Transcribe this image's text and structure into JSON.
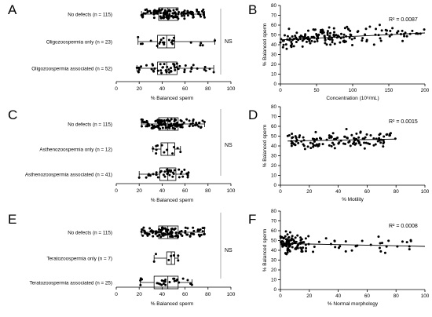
{
  "colors": {
    "axis": "#000000",
    "ns_line": "#999999",
    "point": "#000000",
    "fit": "#000000",
    "background": "#ffffff"
  },
  "chart_data": [
    {
      "panel": "A",
      "type": "box",
      "xlabel": "% Balanced sperm",
      "xlim": [
        0,
        100
      ],
      "xticks": [
        0,
        20,
        40,
        60,
        80,
        100
      ],
      "annotation": "NS",
      "categories": [
        {
          "label": "No defects (n = 115)",
          "whisker": [
            22,
            77
          ],
          "box": [
            37,
            54
          ],
          "median": 45,
          "n": 115
        },
        {
          "label": "Oligozoospermia only (n = 23)",
          "whisker": [
            19,
            86
          ],
          "box": [
            36,
            51
          ],
          "median": 44,
          "n": 23
        },
        {
          "label": "Oligozoospermia associated (n = 52)",
          "whisker": [
            18,
            85
          ],
          "box": [
            36,
            53
          ],
          "median": 44,
          "n": 52
        }
      ]
    },
    {
      "panel": "B",
      "type": "scatter",
      "xlabel": "Concentration (10⁶/mL)",
      "ylabel": "% Balanced sperm",
      "xlim": [
        0,
        200
      ],
      "ylim": [
        0,
        80
      ],
      "xticks": [
        0,
        50,
        100,
        150,
        200
      ],
      "yticks": [
        0,
        10,
        20,
        30,
        40,
        50,
        60,
        70,
        80
      ],
      "r2": "R² = 0.0087",
      "fit": [
        [
          0,
          45
        ],
        [
          200,
          52
        ]
      ]
    },
    {
      "panel": "C",
      "type": "box",
      "xlabel": "% Balanced sperm",
      "xlim": [
        0,
        100
      ],
      "xticks": [
        0,
        20,
        40,
        60,
        80,
        100
      ],
      "annotation": "NS",
      "categories": [
        {
          "label": "No defects (n = 115)",
          "whisker": [
            22,
            77
          ],
          "box": [
            37,
            54
          ],
          "median": 45,
          "n": 115
        },
        {
          "label": "Asthenozoospermia only (n = 12)",
          "whisker": [
            32,
            56
          ],
          "box": [
            39,
            51
          ],
          "median": 45,
          "n": 12
        },
        {
          "label": "Asthenozoospermia associated (n = 41)",
          "whisker": [
            20,
            63
          ],
          "box": [
            38,
            52
          ],
          "median": 45,
          "n": 41
        }
      ]
    },
    {
      "panel": "D",
      "type": "scatter",
      "xlabel": "% Motility",
      "ylabel": "% Balanced sperm",
      "xlim": [
        0,
        100
      ],
      "ylim": [
        0,
        80
      ],
      "xticks": [
        0,
        20,
        40,
        60,
        80,
        100
      ],
      "yticks": [
        0,
        10,
        20,
        30,
        40,
        50,
        60,
        70,
        80
      ],
      "r2": "R² = 0.0015",
      "fit": [
        [
          5,
          45
        ],
        [
          80,
          47
        ]
      ]
    },
    {
      "panel": "E",
      "type": "box",
      "xlabel": "% Balanced sperm",
      "xlim": [
        0,
        100
      ],
      "xticks": [
        0,
        20,
        40,
        60,
        80,
        100
      ],
      "annotation": "NS",
      "categories": [
        {
          "label": "No defects (n = 115)",
          "whisker": [
            22,
            77
          ],
          "box": [
            37,
            54
          ],
          "median": 45,
          "n": 115
        },
        {
          "label": "Teratozoospermia only (n = 7)",
          "whisker": [
            33,
            54
          ],
          "box": [
            44,
            51
          ],
          "median": 48,
          "n": 7
        },
        {
          "label": "Teratozoospermia associated (n = 25)",
          "whisker": [
            21,
            66
          ],
          "box": [
            33,
            54
          ],
          "median": 45,
          "n": 25
        }
      ]
    },
    {
      "panel": "F",
      "type": "scatter",
      "xlabel": "% Normal morphology",
      "ylabel": "% Balanced sperm",
      "xlim": [
        0,
        100
      ],
      "ylim": [
        0,
        80
      ],
      "xticks": [
        0,
        20,
        40,
        60,
        80,
        100
      ],
      "yticks": [
        0,
        10,
        20,
        30,
        40,
        50,
        60,
        70,
        80
      ],
      "r2": "R² = 0.0008",
      "fit": [
        [
          0,
          47
        ],
        [
          100,
          44
        ]
      ]
    }
  ]
}
